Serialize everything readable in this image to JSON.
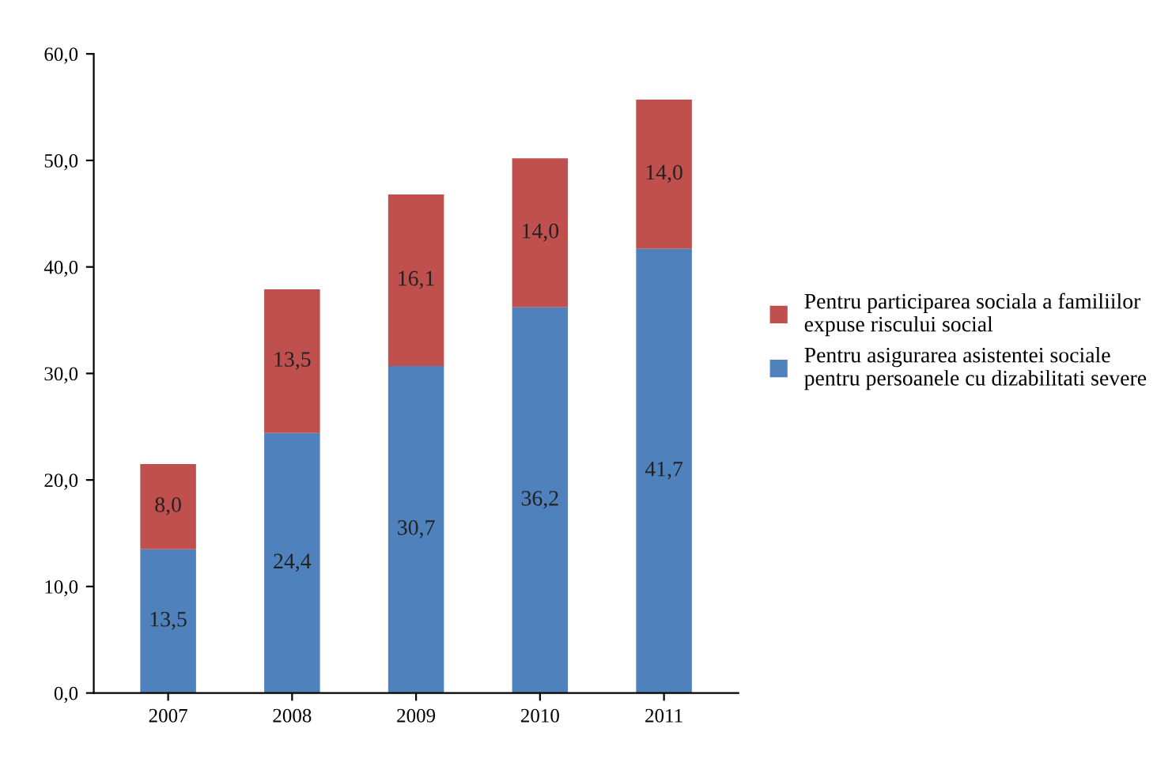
{
  "chart_data": {
    "type": "bar",
    "stacked": true,
    "categories": [
      "2007",
      "2008",
      "2009",
      "2010",
      "2011"
    ],
    "series": [
      {
        "name": "Pentru asigurarea asistentei sociale\npentru persoanele cu dizabilitati severe",
        "color": "#4f81bd",
        "values": [
          13.5,
          24.4,
          30.7,
          36.2,
          41.7
        ],
        "value_labels": [
          "13,5",
          "24,4",
          "30,7",
          "36,2",
          "41,7"
        ]
      },
      {
        "name": "Pentru participarea sociala a familiilor\nexpuse riscului social",
        "color": "#c0504d",
        "values": [
          8.0,
          13.5,
          16.1,
          14.0,
          14.0
        ],
        "value_labels": [
          "8,0",
          "13,5",
          "16,1",
          "14,0",
          "14,0"
        ]
      }
    ],
    "ylim": [
      0,
      60
    ],
    "yticks": [
      {
        "value": 0,
        "label": "0,0"
      },
      {
        "value": 10,
        "label": "10,0"
      },
      {
        "value": 20,
        "label": "20,0"
      },
      {
        "value": 30,
        "label": "30,0"
      },
      {
        "value": 40,
        "label": "40,0"
      },
      {
        "value": 50,
        "label": "50,0"
      },
      {
        "value": 60,
        "label": "60,0"
      }
    ],
    "legend": "right",
    "grid": false
  }
}
